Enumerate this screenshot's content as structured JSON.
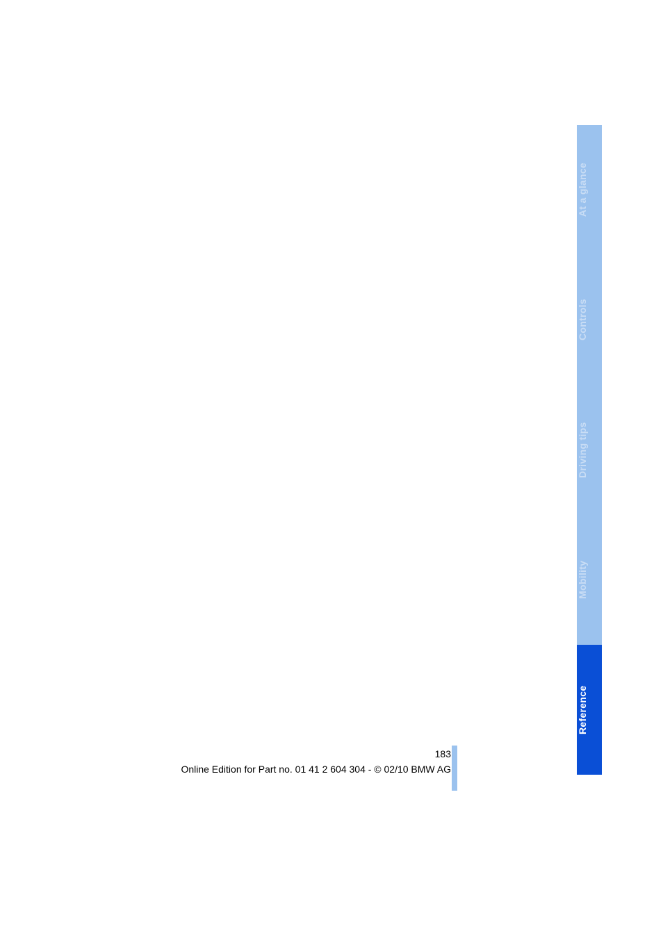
{
  "footer": {
    "page_number": "183",
    "edition_line": "Online Edition for Part no. 01 41 2 604 304 - © 02/10 BMW AG"
  },
  "tabs": {
    "at_a_glance": {
      "label": "At a glance"
    },
    "controls": {
      "label": "Controls"
    },
    "driving": {
      "label": "Driving tips"
    },
    "mobility": {
      "label": "Mobility"
    },
    "reference": {
      "label": "Reference"
    }
  },
  "colors": {
    "tab_inactive_bg": "#9bc2ee",
    "tab_inactive_fg": "#c9ddf5",
    "tab_active_bg": "#0a4fd6",
    "tab_active_fg": "#ffffff",
    "page_bg": "#ffffff",
    "text": "#000000"
  }
}
